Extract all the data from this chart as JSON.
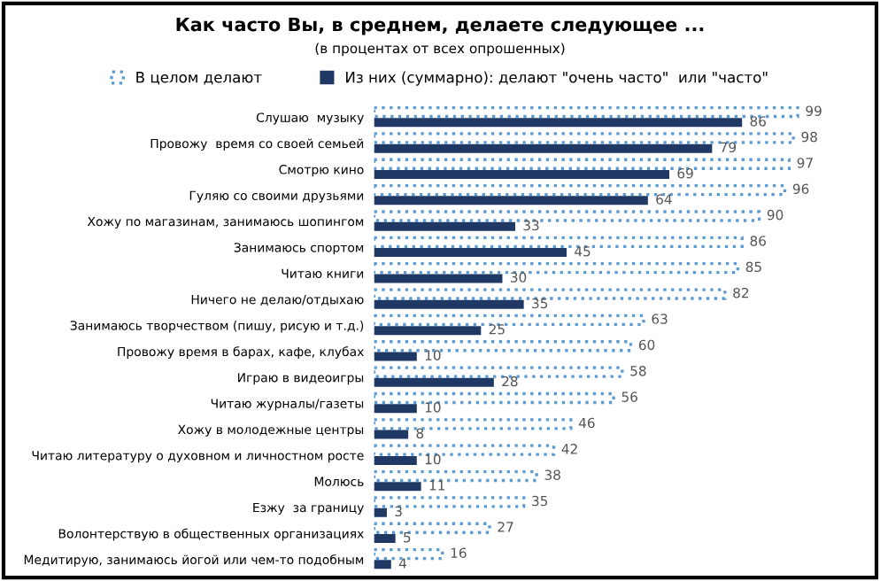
{
  "chart_data": {
    "type": "bar",
    "orientation": "horizontal",
    "title": "Как часто Вы, в среднем, делаете следующее ...",
    "subtitle": "(в процентах от всех опрошенных)",
    "categories": [
      "Слушаю  музыку",
      "Провожу  время со своей семьей",
      "Смотрю кино",
      "Гуляю со своими друзьями",
      "Хожу по магазинам, занимаюсь шопингом",
      "Занимаюсь спортом",
      "Читаю книги",
      "Ничего не делаю/отдыхаю",
      "Занимаюсь творчеством (пишу, рисую и т.д.)",
      "Провожу время в барах, кафе, клубах",
      "Играю в видеоигры",
      "Читаю журналы/газеты",
      "Хожу в молодежные центры",
      "Читаю литературу о духовном и личностном росте",
      "Молюсь",
      "Езжу  за границу",
      "Волонтерствую в общественных организациях",
      "Медитирую, занимаюсь йогой или чем-то подобным"
    ],
    "series": [
      {
        "name": "В целом делают",
        "color": "#5b9bd5",
        "values": [
          99,
          98,
          97,
          96,
          90,
          86,
          85,
          82,
          63,
          60,
          58,
          56,
          46,
          42,
          38,
          35,
          27,
          16
        ]
      },
      {
        "name": "Из них (суммарно): делают \"очень часто\"  или \"часто\"",
        "color": "#203864",
        "values": [
          86,
          79,
          69,
          64,
          33,
          45,
          30,
          35,
          25,
          10,
          28,
          10,
          8,
          10,
          11,
          3,
          5,
          4
        ]
      }
    ],
    "data_labels": true,
    "legend": "top",
    "grid": false
  }
}
